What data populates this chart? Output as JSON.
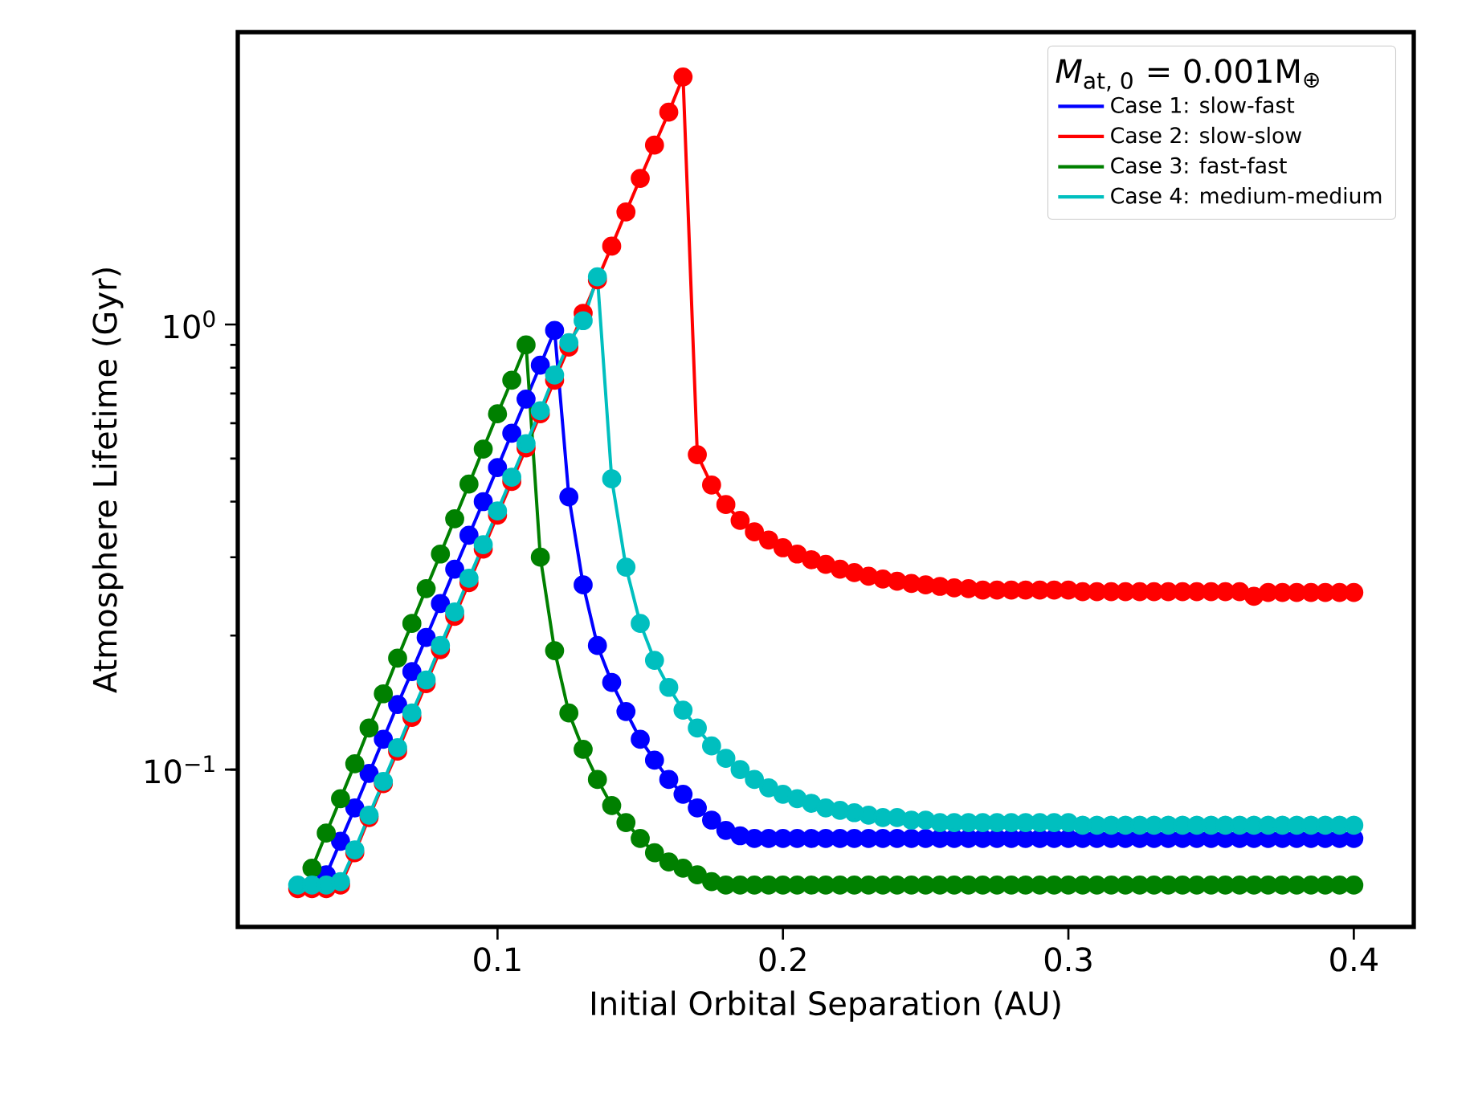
{
  "chart_data": {
    "type": "line",
    "xlabel": "Initial Orbital Separation (AU)",
    "ylabel": "Atmosphere Lifetime (Gyr)",
    "legend_title": "*M*$_{at, 0}$ = 0.001M$_{⊕}$",
    "x": [
      0.03,
      0.035,
      0.04,
      0.045,
      0.05,
      0.055,
      0.06,
      0.065,
      0.07,
      0.075,
      0.08,
      0.085,
      0.09,
      0.095,
      0.1,
      0.105,
      0.11,
      0.115,
      0.12,
      0.125,
      0.13,
      0.135,
      0.14,
      0.145,
      0.15,
      0.155,
      0.16,
      0.165,
      0.17,
      0.175,
      0.18,
      0.185,
      0.19,
      0.195,
      0.2,
      0.205,
      0.21,
      0.215,
      0.22,
      0.225,
      0.23,
      0.235,
      0.24,
      0.245,
      0.25,
      0.255,
      0.26,
      0.265,
      0.27,
      0.275,
      0.28,
      0.285,
      0.29,
      0.295,
      0.3,
      0.305,
      0.31,
      0.315,
      0.32,
      0.325,
      0.33,
      0.335,
      0.34,
      0.345,
      0.35,
      0.355,
      0.36,
      0.365,
      0.37,
      0.375,
      0.38,
      0.385,
      0.39,
      0.395,
      0.4
    ],
    "series": [
      {
        "name": "Case 1: slow-fast",
        "color": "#0000ff",
        "values": [
          null,
          null,
          0.058,
          0.069,
          0.082,
          0.098,
          0.117,
          0.14,
          0.166,
          0.198,
          0.236,
          0.282,
          0.336,
          0.4,
          0.477,
          0.57,
          0.68,
          0.81,
          0.97,
          0.41,
          0.26,
          0.19,
          0.157,
          0.135,
          0.117,
          0.105,
          0.095,
          0.088,
          0.082,
          0.077,
          0.073,
          0.071,
          0.07,
          0.07,
          0.07,
          0.07,
          0.07,
          0.07,
          0.07,
          0.07,
          0.07,
          0.07,
          0.07,
          0.07,
          0.07,
          0.07,
          0.07,
          0.07,
          0.07,
          0.07,
          0.07,
          0.07,
          0.07,
          0.07,
          0.07,
          0.07,
          0.07,
          0.07,
          0.07,
          0.07,
          0.07,
          0.07,
          0.07,
          0.07,
          0.07,
          0.07,
          0.07,
          0.07,
          0.07,
          0.07,
          0.07,
          0.07,
          0.07,
          0.07,
          0.07
        ]
      },
      {
        "name": "Case 2: slow-slow",
        "color": "#ff0000",
        "values": [
          0.054,
          0.054,
          0.054,
          0.055,
          0.065,
          0.078,
          0.093,
          0.11,
          0.131,
          0.156,
          0.186,
          0.221,
          0.263,
          0.313,
          0.373,
          0.444,
          0.528,
          0.63,
          0.75,
          0.89,
          1.06,
          1.26,
          1.5,
          1.79,
          2.13,
          2.53,
          3.0,
          3.6,
          0.51,
          0.436,
          0.394,
          0.363,
          0.342,
          0.328,
          0.315,
          0.305,
          0.296,
          0.289,
          0.282,
          0.277,
          0.272,
          0.268,
          0.265,
          0.262,
          0.26,
          0.258,
          0.256,
          0.255,
          0.253,
          0.253,
          0.253,
          0.253,
          0.253,
          0.253,
          0.253,
          0.251,
          0.251,
          0.251,
          0.251,
          0.251,
          0.251,
          0.251,
          0.251,
          0.251,
          0.251,
          0.251,
          0.251,
          0.245,
          0.25,
          0.25,
          0.25,
          0.25,
          0.25,
          0.25,
          0.25
        ]
      },
      {
        "name": "Case 3: fast-fast",
        "color": "#008000",
        "values": [
          null,
          0.06,
          0.072,
          0.086,
          0.103,
          0.124,
          0.148,
          0.178,
          0.213,
          0.255,
          0.305,
          0.366,
          0.438,
          0.525,
          0.63,
          0.75,
          0.9,
          0.3,
          0.185,
          0.134,
          0.111,
          0.095,
          0.083,
          0.076,
          0.07,
          0.065,
          0.062,
          0.06,
          0.058,
          0.056,
          0.055,
          0.055,
          0.055,
          0.055,
          0.055,
          0.055,
          0.055,
          0.055,
          0.055,
          0.055,
          0.055,
          0.055,
          0.055,
          0.055,
          0.055,
          0.055,
          0.055,
          0.055,
          0.055,
          0.055,
          0.055,
          0.055,
          0.055,
          0.055,
          0.055,
          0.055,
          0.055,
          0.055,
          0.055,
          0.055,
          0.055,
          0.055,
          0.055,
          0.055,
          0.055,
          0.055,
          0.055,
          0.055,
          0.055,
          0.055,
          0.055,
          0.055,
          0.055,
          0.055,
          0.055
        ]
      },
      {
        "name": "Case 4: medium-medium",
        "color": "#00bfbf",
        "values": [
          0.055,
          0.055,
          0.055,
          0.056,
          0.066,
          0.079,
          0.094,
          0.112,
          0.134,
          0.159,
          0.19,
          0.226,
          0.269,
          0.32,
          0.381,
          0.454,
          0.54,
          0.64,
          0.77,
          0.91,
          1.02,
          1.28,
          0.45,
          0.285,
          0.213,
          0.176,
          0.153,
          0.136,
          0.124,
          0.113,
          0.106,
          0.1,
          0.095,
          0.091,
          0.088,
          0.086,
          0.084,
          0.082,
          0.081,
          0.08,
          0.079,
          0.078,
          0.078,
          0.077,
          0.077,
          0.076,
          0.076,
          0.076,
          0.076,
          0.076,
          0.076,
          0.076,
          0.076,
          0.076,
          0.076,
          0.075,
          0.075,
          0.075,
          0.075,
          0.075,
          0.075,
          0.075,
          0.075,
          0.075,
          0.075,
          0.075,
          0.075,
          0.075,
          0.075,
          0.075,
          0.075,
          0.075,
          0.075,
          0.075,
          0.075
        ]
      }
    ],
    "xlim": [
      0.009,
      0.421
    ],
    "ylim": [
      0.0443,
      4.54
    ],
    "xticks": [
      0.1,
      0.2,
      0.3,
      0.4
    ],
    "yticks": [
      {
        "value": 0.1,
        "label": "10$^{−1}$"
      },
      {
        "value": 1,
        "label": "10$^{0}$"
      }
    ],
    "log": "y",
    "grid": false,
    "legend": "top right",
    "marker": "circle",
    "line_style": "solid"
  }
}
